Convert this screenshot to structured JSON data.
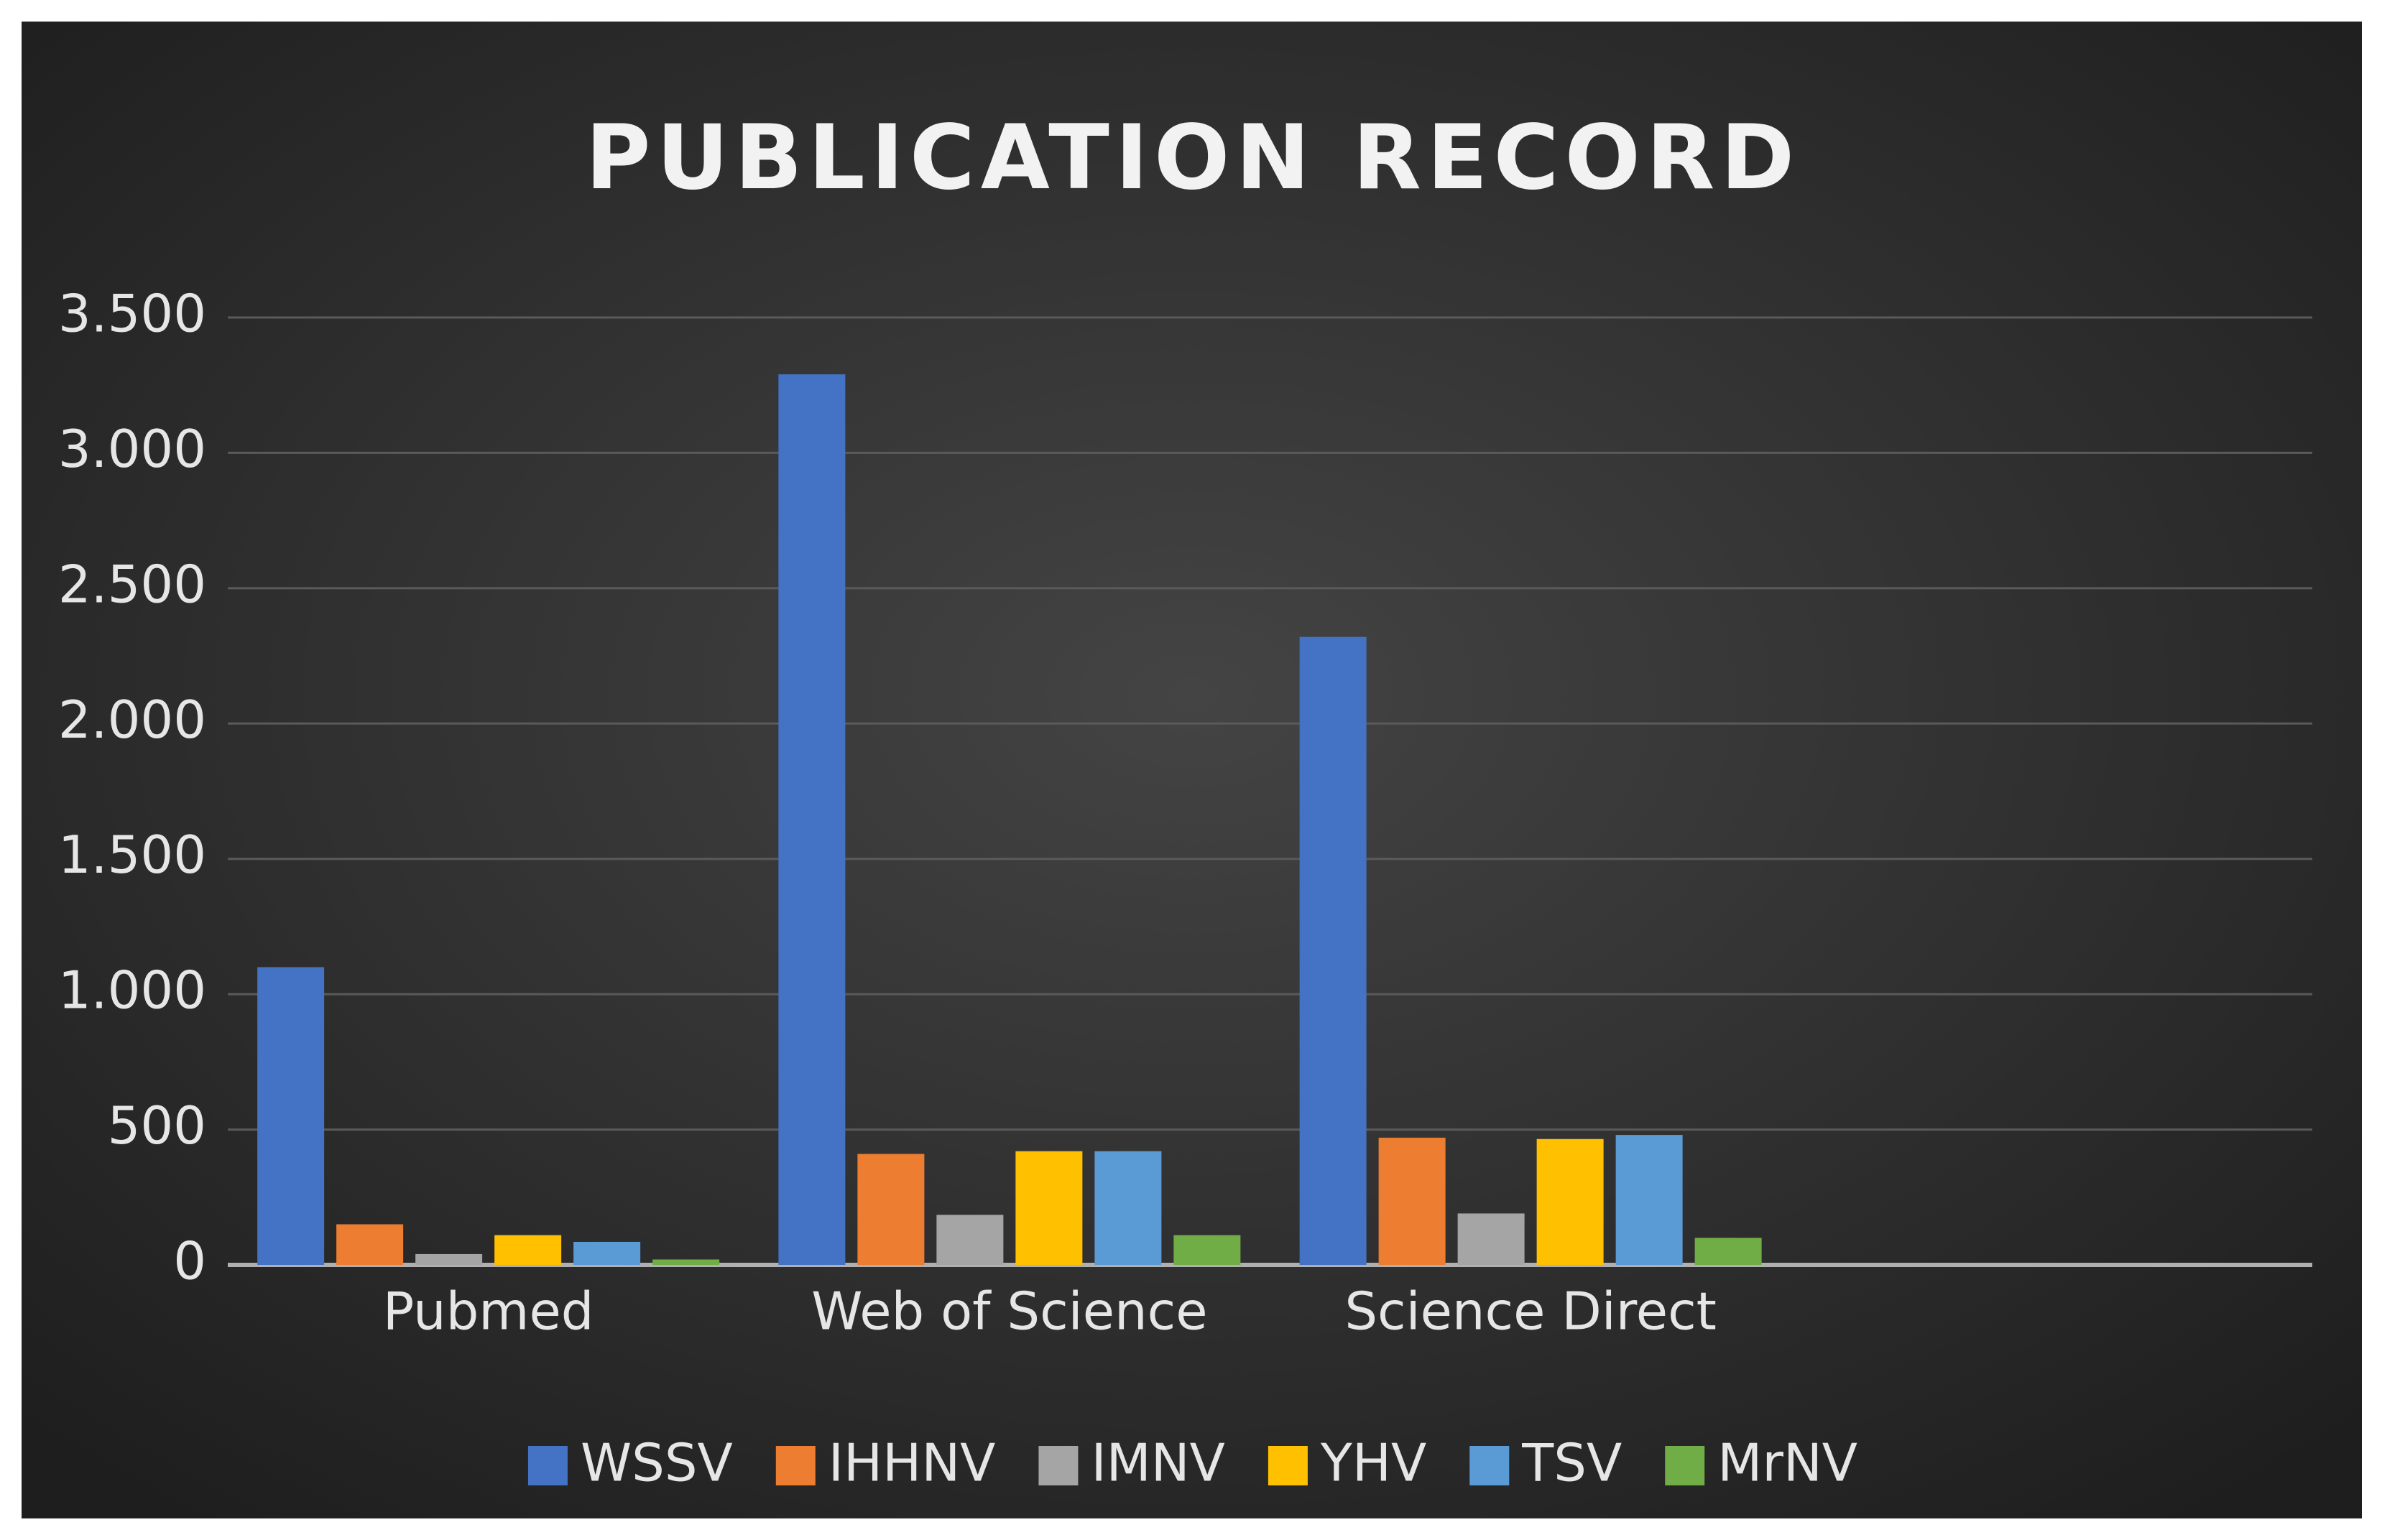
{
  "chart_data": {
    "type": "bar",
    "title": "PUBLICATION RECORD",
    "categories": [
      "Pubmed",
      "Web of Science",
      "Science Direct",
      null
    ],
    "series": [
      {
        "name": "WSSV",
        "color": "#4472c4",
        "values": [
          1100,
          3290,
          2320,
          null
        ]
      },
      {
        "name": "IHHNV",
        "color": "#ed7d31",
        "values": [
          150,
          410,
          470,
          null
        ]
      },
      {
        "name": "IMNV",
        "color": "#a5a5a5",
        "values": [
          40,
          185,
          190,
          null
        ]
      },
      {
        "name": "YHV",
        "color": "#ffc000",
        "values": [
          110,
          420,
          465,
          null
        ]
      },
      {
        "name": "TSV",
        "color": "#5b9bd5",
        "values": [
          85,
          420,
          480,
          null
        ]
      },
      {
        "name": "MrNV",
        "color": "#70ad47",
        "values": [
          20,
          110,
          100,
          null
        ]
      }
    ],
    "ylim": [
      0,
      3500
    ],
    "yticks": [
      0,
      500,
      {
        "value": 1000,
        "label": "1.000"
      },
      {
        "value": 1500,
        "label": "1.500"
      },
      {
        "value": 2000,
        "label": "2.000"
      },
      {
        "value": 2500,
        "label": "2.500"
      },
      {
        "value": 3000,
        "label": "3.000"
      },
      {
        "value": 3500,
        "label": "3.500"
      }
    ],
    "grid": true,
    "legend": "bottom"
  }
}
